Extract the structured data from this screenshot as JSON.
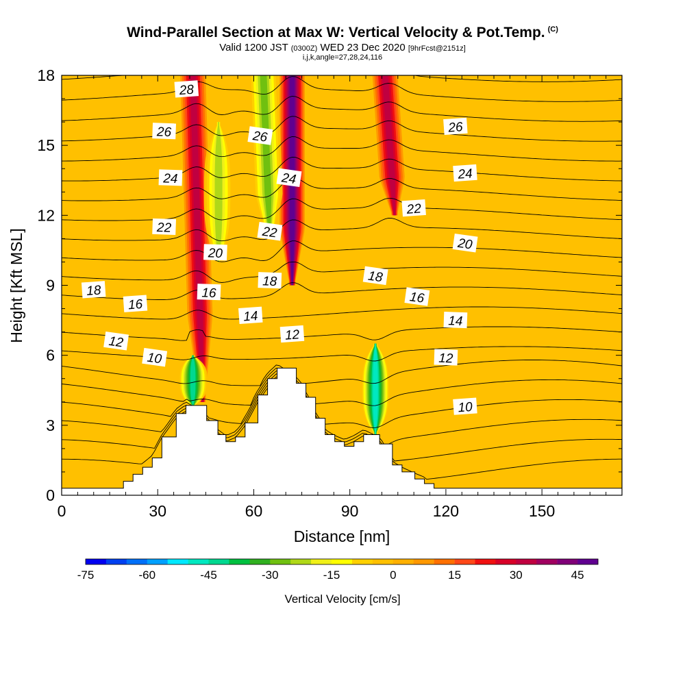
{
  "title": "Wind-Parallel Section at Max W: Vertical Velocity & Pot.Temp.",
  "copyright": "(C)",
  "subtitle_main_a": "Valid 1200 JST",
  "subtitle_small_a": "(0300Z)",
  "subtitle_main_b": "WED 23 Dec 2020",
  "subtitle_small_b": "[9hrFcst@2151z]",
  "indices": "i,j,k,angle=27,28,24,116",
  "chart_data": {
    "type": "heatmap",
    "xlabel": "Distance [nm]",
    "ylabel": "Height [Kft MSL]",
    "xlim": [
      0,
      175
    ],
    "ylim": [
      0,
      18
    ],
    "x_ticks": [
      0,
      30,
      60,
      90,
      120,
      150
    ],
    "y_ticks": [
      0,
      3,
      6,
      9,
      12,
      15,
      18
    ],
    "colorbar": {
      "label": "Vertical Velocity [cm/s]",
      "range": [
        -75,
        50
      ],
      "step": 5,
      "tick_labels": [
        -75,
        -60,
        -45,
        -30,
        -15,
        0,
        15,
        30,
        45
      ],
      "colors": [
        "#0000f0",
        "#0040f0",
        "#0070f8",
        "#00a0ff",
        "#00e8ff",
        "#00e8c0",
        "#00d890",
        "#00c040",
        "#30b020",
        "#70c010",
        "#b0d818",
        "#f0f018",
        "#ffff00",
        "#ffd000",
        "#ffc000",
        "#ffb000",
        "#ff9800",
        "#ff7000",
        "#ff4818",
        "#f01010",
        "#d80028",
        "#c00040",
        "#a00060",
        "#800078",
        "#600090"
      ]
    },
    "vertical_velocity_features": [
      {
        "kind": "updraft",
        "x_bottom": 44,
        "x_top": 41,
        "y_bottom": 4,
        "y_top": 18,
        "peak_cm_s": 30
      },
      {
        "kind": "updraft",
        "x_bottom": 72,
        "x_top": 72,
        "y_bottom": 9,
        "y_top": 18,
        "peak_cm_s": 45
      },
      {
        "kind": "updraft",
        "x_bottom": 104,
        "x_top": 101,
        "y_bottom": 12,
        "y_top": 18,
        "peak_cm_s": 30
      },
      {
        "kind": "downdraft",
        "x_bottom": 41,
        "x_top": 41,
        "y_bottom": 3.8,
        "y_top": 6,
        "peak_cm_s": -45
      },
      {
        "kind": "downdraft",
        "x_bottom": 49,
        "x_top": 49,
        "y_bottom": 10,
        "y_top": 16,
        "peak_cm_s": -25
      },
      {
        "kind": "downdraft",
        "x_bottom": 65,
        "x_top": 63,
        "y_bottom": 11,
        "y_top": 18,
        "peak_cm_s": -30
      },
      {
        "kind": "downdraft",
        "x_bottom": 98,
        "x_top": 98,
        "y_bottom": 2.6,
        "y_top": 6.5,
        "peak_cm_s": -50
      }
    ],
    "theta_contours": {
      "levels": [
        8,
        9,
        10,
        11,
        12,
        13,
        14,
        15,
        16,
        17,
        18,
        19,
        20,
        21,
        22,
        23,
        24,
        25,
        26,
        27,
        28
      ],
      "labels": [
        {
          "text": "28",
          "x": 39,
          "y": 17.4
        },
        {
          "text": "26",
          "x": 32,
          "y": 15.6
        },
        {
          "text": "26",
          "x": 62,
          "y": 15.4
        },
        {
          "text": "26",
          "x": 123,
          "y": 15.8
        },
        {
          "text": "24",
          "x": 34,
          "y": 13.6
        },
        {
          "text": "24",
          "x": 71,
          "y": 13.6
        },
        {
          "text": "24",
          "x": 126,
          "y": 13.8
        },
        {
          "text": "22",
          "x": 32,
          "y": 11.5
        },
        {
          "text": "22",
          "x": 65,
          "y": 11.3
        },
        {
          "text": "22",
          "x": 110,
          "y": 12.3
        },
        {
          "text": "20",
          "x": 48,
          "y": 10.4
        },
        {
          "text": "20",
          "x": 126,
          "y": 10.8
        },
        {
          "text": "18",
          "x": 10,
          "y": 8.8
        },
        {
          "text": "18",
          "x": 65,
          "y": 9.2
        },
        {
          "text": "18",
          "x": 98,
          "y": 9.4
        },
        {
          "text": "16",
          "x": 23,
          "y": 8.2
        },
        {
          "text": "16",
          "x": 46,
          "y": 8.7
        },
        {
          "text": "16",
          "x": 111,
          "y": 8.5
        },
        {
          "text": "14",
          "x": 59,
          "y": 7.7
        },
        {
          "text": "14",
          "x": 123,
          "y": 7.5
        },
        {
          "text": "12",
          "x": 17,
          "y": 6.6
        },
        {
          "text": "12",
          "x": 72,
          "y": 6.9
        },
        {
          "text": "12",
          "x": 120,
          "y": 5.9
        },
        {
          "text": "10",
          "x": 29,
          "y": 5.9
        },
        {
          "text": "10",
          "x": 126,
          "y": 3.8
        }
      ]
    },
    "terrain": {
      "x": [
        0,
        19.3,
        22.3,
        25.3,
        28.3,
        31.3,
        35.8,
        38.8,
        45.3,
        48.8,
        51.3,
        54.3,
        57.3,
        61.3,
        64.3,
        67.3,
        73.3,
        76.3,
        79.3,
        82.3,
        85.3,
        88.3,
        91.3,
        94.3,
        99.3,
        103.3,
        106.3,
        110.3,
        113.3,
        116.3,
        119.3,
        175
      ],
      "y": [
        0.3,
        0.6,
        0.9,
        1.2,
        1.6,
        2.5,
        3.5,
        3.85,
        3.2,
        2.6,
        2.3,
        2.5,
        3.1,
        4.3,
        5.0,
        5.45,
        4.8,
        4.2,
        3.3,
        2.6,
        2.3,
        2.1,
        2.3,
        2.6,
        2.2,
        1.3,
        1.0,
        0.7,
        0.5,
        0.3,
        0.3,
        0.3
      ]
    }
  }
}
